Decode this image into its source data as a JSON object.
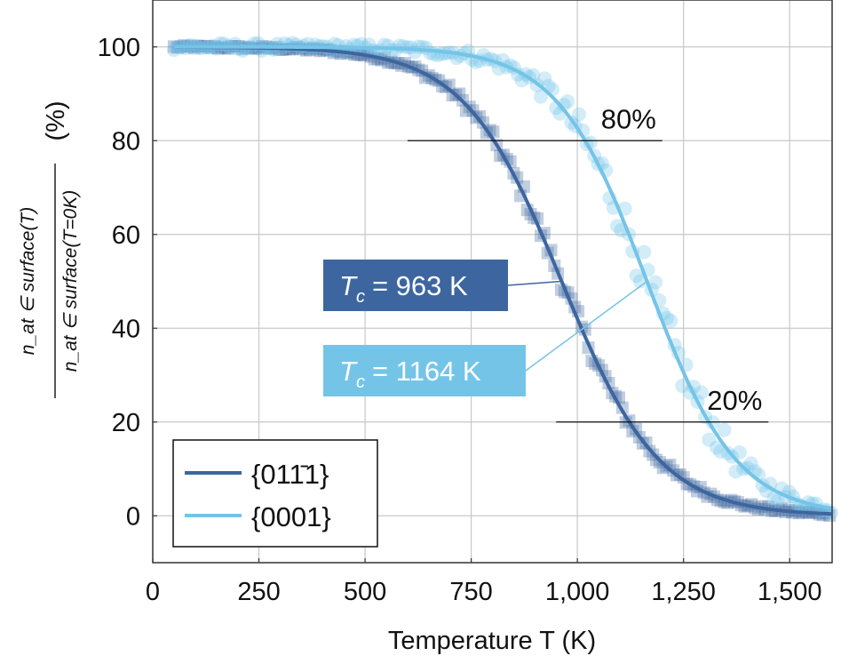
{
  "chart_data": {
    "type": "scatter",
    "xlabel": "Temperature T (K)",
    "ylabel": {
      "numerator": "n_at ∈ surface(T)",
      "denominator": "n_at ∈ surface(T=0K)",
      "unit": "(%)"
    },
    "xlim": [
      0,
      1600
    ],
    "ylim": [
      -10,
      110
    ],
    "x_ticks": [
      0,
      250,
      500,
      750,
      1000,
      1250,
      1500
    ],
    "x_tick_labels": [
      "0",
      "250",
      "500",
      "750",
      "1,000",
      "1,250",
      "1,500"
    ],
    "y_ticks": [
      0,
      20,
      40,
      60,
      80,
      100
    ],
    "y_tick_labels": [
      "0",
      "20",
      "40",
      "60",
      "80",
      "100"
    ],
    "grid": true,
    "legend_position": "bottom-left",
    "series": [
      {
        "name": "{011̄1}",
        "color": "#3d66a0",
        "marker": "square",
        "fit": {
          "type": "sigmoid",
          "Tc": 963,
          "width": 115,
          "range": [
            50,
            1600
          ]
        },
        "points_x_range": [
          50,
          1600
        ],
        "points_x_step": 8,
        "points_noise": 1.2
      },
      {
        "name": "{0001}",
        "color": "#74c4e8",
        "marker": "circle",
        "fit": {
          "type": "sigmoid",
          "Tc": 1164,
          "width": 105,
          "range": [
            50,
            1600
          ]
        },
        "points_x_range": [
          50,
          1600
        ],
        "points_x_step": 9,
        "points_noise": 2.8
      }
    ],
    "reference_lines": [
      {
        "label": "80%",
        "y": 80,
        "x_range": [
          600,
          1200
        ]
      },
      {
        "label": "20%",
        "y": 20,
        "x_range": [
          950,
          1450
        ]
      }
    ],
    "annotations": [
      {
        "label_prefix": "T",
        "label_sub": "c",
        "label_rest": "= 963 K",
        "series": 0,
        "box_color": "#3d66a0",
        "point_x": 963
      },
      {
        "label_prefix": "T",
        "label_sub": "c",
        "label_rest": "= 1164 K",
        "series": 1,
        "box_color": "#74c4e8",
        "point_x": 1164
      }
    ]
  }
}
